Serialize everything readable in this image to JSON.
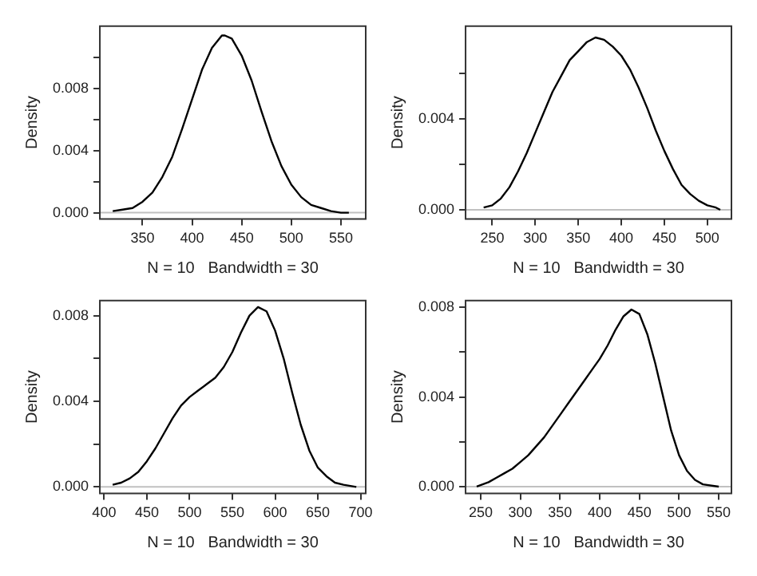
{
  "chart_data": [
    {
      "type": "line",
      "xlabel": "N = 10   Bandwidth = 30",
      "ylabel": "Density",
      "xlim": [
        307,
        575
      ],
      "ylim": [
        -0.0004,
        0.012
      ],
      "xticks": [
        350,
        400,
        450,
        500,
        550
      ],
      "yticks": [
        {
          "value": 0,
          "label": "0.000"
        },
        {
          "value": 0.002,
          "label": null
        },
        {
          "value": 0.004,
          "label": "0.004"
        },
        {
          "value": 0.006,
          "label": null
        },
        {
          "value": 0.008,
          "label": "0.008"
        },
        {
          "value": 0.01,
          "label": null
        }
      ],
      "ref_lines": [
        {
          "axis": "y",
          "value": 0,
          "color": "#c0c0c0"
        }
      ],
      "series": [
        {
          "color": "#000000",
          "x": [
            320,
            330,
            340,
            350,
            360,
            370,
            380,
            390,
            400,
            410,
            420,
            430,
            433,
            440,
            450,
            460,
            470,
            480,
            490,
            500,
            510,
            520,
            530,
            540,
            550,
            558
          ],
          "values": [
            0.0001,
            0.0002,
            0.0003,
            0.0007,
            0.0013,
            0.0023,
            0.0036,
            0.0054,
            0.0073,
            0.0092,
            0.0106,
            0.0114,
            0.0114,
            0.0112,
            0.0101,
            0.0085,
            0.0065,
            0.0046,
            0.003,
            0.0018,
            0.001,
            0.0005,
            0.0003,
            0.0001,
            0,
            0
          ]
        }
      ]
    },
    {
      "type": "line",
      "xlabel": "N = 10   Bandwidth = 30",
      "ylabel": "Density",
      "xlim": [
        219,
        528
      ],
      "ylim": [
        -0.0004,
        0.0081
      ],
      "xticks": [
        250,
        300,
        350,
        400,
        450,
        500
      ],
      "yticks": [
        {
          "value": 0,
          "label": "0.000"
        },
        {
          "value": 0.002,
          "label": null
        },
        {
          "value": 0.004,
          "label": "0.004"
        },
        {
          "value": 0.006,
          "label": null
        }
      ],
      "ref_lines": [
        {
          "axis": "y",
          "value": 0,
          "color": "#c0c0c0"
        }
      ],
      "series": [
        {
          "color": "#000000",
          "x": [
            240,
            250,
            260,
            270,
            280,
            290,
            300,
            310,
            320,
            330,
            340,
            350,
            360,
            370,
            380,
            390,
            400,
            410,
            420,
            430,
            440,
            450,
            460,
            470,
            480,
            490,
            500,
            510,
            515
          ],
          "values": [
            0.0001,
            0.0002,
            0.0005,
            0.001,
            0.0017,
            0.0025,
            0.0034,
            0.0043,
            0.0052,
            0.0059,
            0.0066,
            0.007,
            0.0074,
            0.0076,
            0.0075,
            0.0072,
            0.0068,
            0.0062,
            0.0054,
            0.0045,
            0.0035,
            0.0026,
            0.0018,
            0.0011,
            0.0007,
            0.0004,
            0.0002,
            0.0001,
            0
          ]
        }
      ]
    },
    {
      "type": "line",
      "xlabel": "N = 10   Bandwidth = 30",
      "ylabel": "Density",
      "xlim": [
        395,
        706
      ],
      "ylim": [
        -0.0003,
        0.0087
      ],
      "xticks": [
        400,
        450,
        500,
        550,
        600,
        650,
        700
      ],
      "yticks": [
        {
          "value": 0,
          "label": "0.000"
        },
        {
          "value": 0.002,
          "label": null
        },
        {
          "value": 0.004,
          "label": "0.004"
        },
        {
          "value": 0.006,
          "label": null
        },
        {
          "value": 0.008,
          "label": "0.008"
        }
      ],
      "ref_lines": [
        {
          "axis": "y",
          "value": 0,
          "color": "#c0c0c0"
        }
      ],
      "series": [
        {
          "color": "#000000",
          "x": [
            410,
            420,
            430,
            440,
            450,
            460,
            470,
            480,
            490,
            500,
            510,
            520,
            530,
            540,
            550,
            560,
            570,
            580,
            590,
            600,
            610,
            620,
            630,
            640,
            650,
            660,
            670,
            680,
            695
          ],
          "values": [
            0.0001,
            0.0002,
            0.0004,
            0.0007,
            0.0012,
            0.0018,
            0.0025,
            0.0032,
            0.0038,
            0.0042,
            0.0045,
            0.0048,
            0.0051,
            0.0056,
            0.0063,
            0.0072,
            0.008,
            0.0084,
            0.0082,
            0.0073,
            0.006,
            0.0044,
            0.0029,
            0.0017,
            0.0009,
            0.0005,
            0.0002,
            0.0001,
            0
          ]
        }
      ]
    },
    {
      "type": "line",
      "xlabel": "N = 10   Bandwidth = 30",
      "ylabel": "Density",
      "xlim": [
        231,
        566
      ],
      "ylim": [
        -0.0003,
        0.0083
      ],
      "xticks": [
        250,
        300,
        350,
        400,
        450,
        500,
        550
      ],
      "yticks": [
        {
          "value": 0,
          "label": "0.000"
        },
        {
          "value": 0.002,
          "label": null
        },
        {
          "value": 0.004,
          "label": "0.004"
        },
        {
          "value": 0.006,
          "label": null
        },
        {
          "value": 0.008,
          "label": "0.008"
        }
      ],
      "ref_lines": [
        {
          "axis": "y",
          "value": 0,
          "color": "#c0c0c0"
        }
      ],
      "series": [
        {
          "color": "#000000",
          "x": [
            245,
            260,
            270,
            280,
            290,
            300,
            310,
            320,
            330,
            340,
            350,
            360,
            370,
            380,
            390,
            400,
            410,
            420,
            430,
            440,
            450,
            460,
            470,
            480,
            490,
            500,
            510,
            520,
            530,
            550
          ],
          "values": [
            0,
            0.0002,
            0.0004,
            0.0006,
            0.0008,
            0.0011,
            0.0014,
            0.0018,
            0.0022,
            0.0027,
            0.0032,
            0.0037,
            0.0042,
            0.0047,
            0.0052,
            0.0057,
            0.0063,
            0.007,
            0.0076,
            0.0079,
            0.0077,
            0.0068,
            0.0055,
            0.004,
            0.0025,
            0.0014,
            0.0007,
            0.0003,
            0.0001,
            0
          ]
        }
      ]
    }
  ]
}
